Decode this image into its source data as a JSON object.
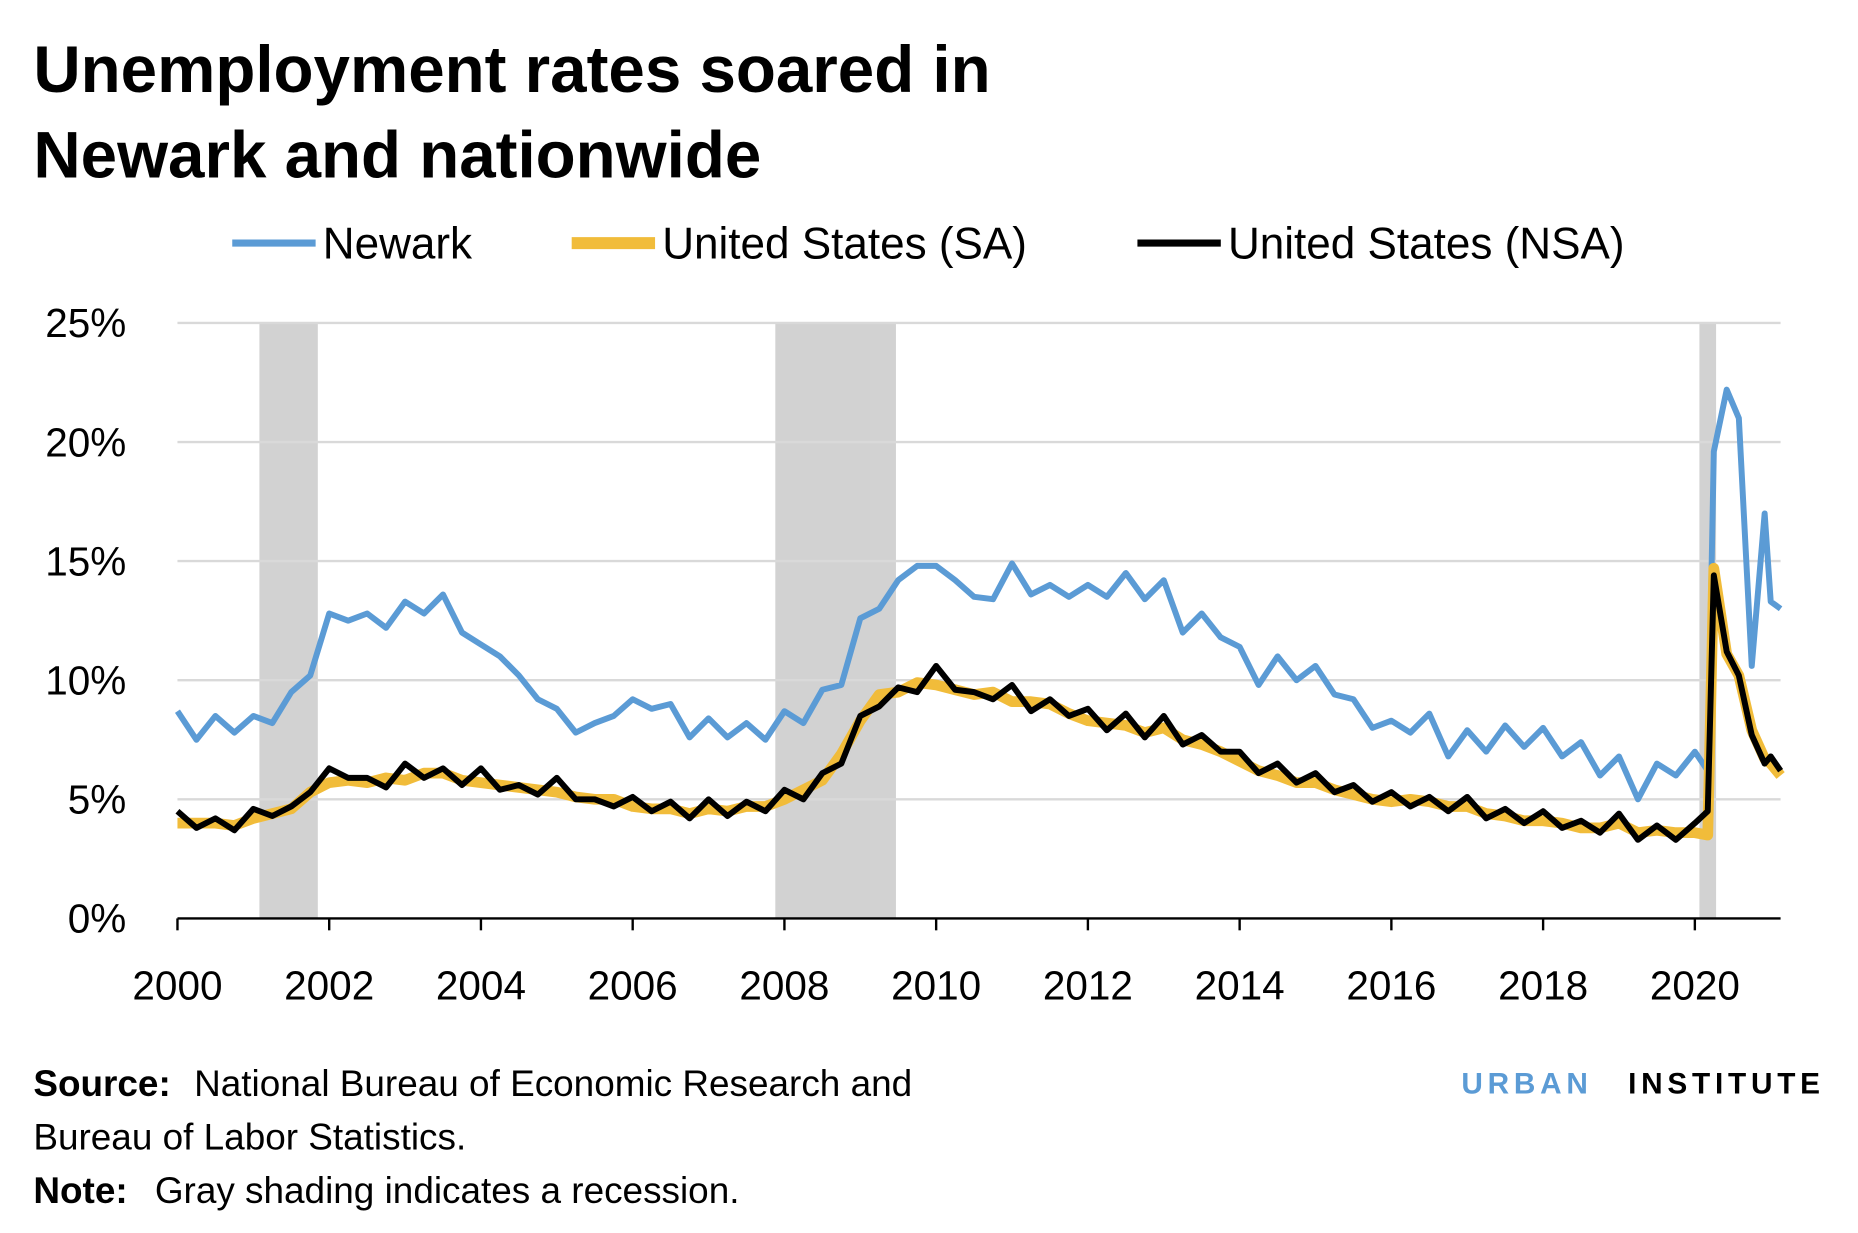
{
  "chart_data": {
    "type": "line",
    "title_lines": [
      "Unemployment rates soared in",
      "Newark and nationwide"
    ],
    "x": [
      2000.0,
      2000.25,
      2000.5,
      2000.75,
      2001.0,
      2001.25,
      2001.5,
      2001.75,
      2002.0,
      2002.25,
      2002.5,
      2002.75,
      2003.0,
      2003.25,
      2003.5,
      2003.75,
      2004.0,
      2004.25,
      2004.5,
      2004.75,
      2005.0,
      2005.25,
      2005.5,
      2005.75,
      2006.0,
      2006.25,
      2006.5,
      2006.75,
      2007.0,
      2007.25,
      2007.5,
      2007.75,
      2008.0,
      2008.25,
      2008.5,
      2008.75,
      2009.0,
      2009.25,
      2009.5,
      2009.75,
      2010.0,
      2010.25,
      2010.5,
      2010.75,
      2011.0,
      2011.25,
      2011.5,
      2011.75,
      2012.0,
      2012.25,
      2012.5,
      2012.75,
      2013.0,
      2013.25,
      2013.5,
      2013.75,
      2014.0,
      2014.25,
      2014.5,
      2014.75,
      2015.0,
      2015.25,
      2015.5,
      2015.75,
      2016.0,
      2016.25,
      2016.5,
      2016.75,
      2017.0,
      2017.25,
      2017.5,
      2017.75,
      2018.0,
      2018.25,
      2018.5,
      2018.75,
      2019.0,
      2019.25,
      2019.5,
      2019.75,
      2020.0,
      2020.17,
      2020.25,
      2020.42,
      2020.58,
      2020.75,
      2020.92,
      2021.0,
      2021.13
    ],
    "series": [
      {
        "name": "Newark",
        "color": "#5b9bd5",
        "width": 5,
        "values": [
          8.7,
          7.5,
          8.5,
          7.8,
          8.5,
          8.2,
          9.5,
          10.2,
          12.8,
          12.5,
          12.8,
          12.2,
          13.3,
          12.8,
          13.6,
          12.0,
          11.5,
          11.0,
          10.2,
          9.2,
          8.8,
          7.8,
          8.2,
          8.5,
          9.2,
          8.8,
          9.0,
          7.6,
          8.4,
          7.6,
          8.2,
          7.5,
          8.7,
          8.2,
          9.6,
          9.8,
          12.6,
          13.0,
          14.2,
          14.8,
          14.8,
          14.2,
          13.5,
          13.4,
          14.9,
          13.6,
          14.0,
          13.5,
          14.0,
          13.5,
          14.5,
          13.4,
          14.2,
          12.0,
          12.8,
          11.8,
          11.4,
          9.8,
          11.0,
          10.0,
          10.6,
          9.4,
          9.2,
          8.0,
          8.3,
          7.8,
          8.6,
          6.8,
          7.9,
          7.0,
          8.1,
          7.2,
          8.0,
          6.8,
          7.4,
          6.0,
          6.8,
          5.0,
          6.5,
          6.0,
          7.0,
          6.2,
          19.6,
          22.2,
          21.0,
          10.6,
          17.0,
          13.3,
          13.0
        ]
      },
      {
        "name": "United States (SA)",
        "color": "#f1bc3a",
        "width": 9,
        "values": [
          4.0,
          4.0,
          4.0,
          3.9,
          4.2,
          4.4,
          4.6,
          5.3,
          5.7,
          5.8,
          5.7,
          5.9,
          5.8,
          6.1,
          6.1,
          5.8,
          5.7,
          5.6,
          5.5,
          5.4,
          5.3,
          5.1,
          5.0,
          5.0,
          4.7,
          4.6,
          4.6,
          4.4,
          4.6,
          4.5,
          4.7,
          4.7,
          5.0,
          5.4,
          5.8,
          6.9,
          8.3,
          9.4,
          9.5,
          9.9,
          9.8,
          9.6,
          9.4,
          9.5,
          9.1,
          9.1,
          9.0,
          8.6,
          8.3,
          8.2,
          8.1,
          7.8,
          8.0,
          7.5,
          7.3,
          7.0,
          6.6,
          6.2,
          6.0,
          5.7,
          5.7,
          5.4,
          5.2,
          5.0,
          4.9,
          5.0,
          4.9,
          4.7,
          4.7,
          4.4,
          4.3,
          4.1,
          4.1,
          4.0,
          3.8,
          3.8,
          4.0,
          3.6,
          3.7,
          3.6,
          3.6,
          3.5,
          14.7,
          11.1,
          10.2,
          7.9,
          6.7,
          6.5,
          6.0
        ]
      },
      {
        "name": "United States (NSA)",
        "color": "#000000",
        "width": 5,
        "values": [
          4.5,
          3.8,
          4.2,
          3.7,
          4.6,
          4.3,
          4.7,
          5.3,
          6.3,
          5.9,
          5.9,
          5.5,
          6.5,
          5.9,
          6.3,
          5.6,
          6.3,
          5.4,
          5.6,
          5.2,
          5.9,
          5.0,
          5.0,
          4.7,
          5.1,
          4.5,
          4.9,
          4.2,
          5.0,
          4.3,
          4.9,
          4.5,
          5.4,
          5.0,
          6.1,
          6.5,
          8.5,
          8.9,
          9.7,
          9.5,
          10.6,
          9.6,
          9.5,
          9.2,
          9.8,
          8.7,
          9.2,
          8.5,
          8.8,
          7.9,
          8.6,
          7.6,
          8.5,
          7.3,
          7.7,
          7.0,
          7.0,
          6.1,
          6.5,
          5.7,
          6.1,
          5.3,
          5.6,
          4.9,
          5.3,
          4.7,
          5.1,
          4.5,
          5.1,
          4.2,
          4.6,
          4.0,
          4.5,
          3.8,
          4.1,
          3.6,
          4.4,
          3.3,
          3.9,
          3.3,
          4.0,
          4.5,
          14.4,
          11.2,
          10.2,
          7.7,
          6.5,
          6.8,
          6.2
        ]
      }
    ],
    "recessions": [
      [
        2001.08,
        2001.85
      ],
      [
        2007.88,
        2009.47
      ],
      [
        2020.06,
        2020.28
      ]
    ],
    "recession_color": "#d2d2d2",
    "xlim": [
      2000,
      2021.13
    ],
    "xticks": [
      2000,
      2002,
      2004,
      2006,
      2008,
      2010,
      2012,
      2014,
      2016,
      2018,
      2020
    ],
    "ylim": [
      0,
      25
    ],
    "yticks": [
      {
        "value": 0,
        "label": "0%"
      },
      {
        "value": 5,
        "label": "5%"
      },
      {
        "value": 10,
        "label": "10%"
      },
      {
        "value": 15,
        "label": "15%"
      },
      {
        "value": 20,
        "label": "20%"
      },
      {
        "value": 25,
        "label": "25%"
      }
    ],
    "grid": true,
    "legend": "top",
    "source_label": "Source:",
    "source_lines": [
      "National Bureau of Economic Research and",
      "Bureau of Labor Statistics."
    ],
    "note_label": "Note:",
    "note": "Gray shading indicates a recession.",
    "logo": {
      "first": "URBAN",
      "second": "INSTITUTE"
    }
  }
}
